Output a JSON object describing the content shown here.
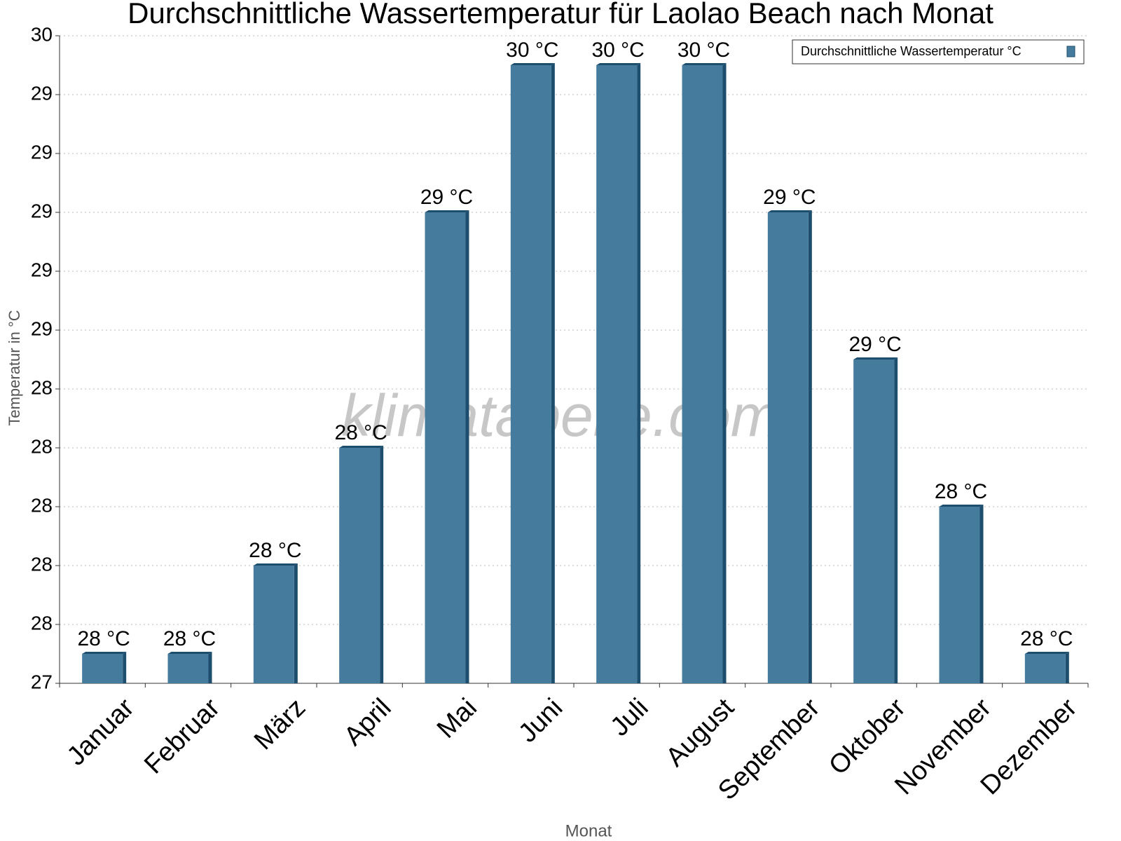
{
  "chart_data": {
    "type": "bar",
    "title": "Durchschnittliche Wassertemperatur für Laolao Beach nach Monat",
    "watermark": "klimatabelle.com",
    "x_label": "Monat",
    "y_label": "Temperatur in °C",
    "categories": [
      "Januar",
      "Februar",
      "März",
      "April",
      "Mai",
      "Juni",
      "Juli",
      "August",
      "September",
      "Oktober",
      "November",
      "Dezember"
    ],
    "series": [
      {
        "name": "Durchschnittliche Wassertemperatur °C",
        "color": "#457b9d",
        "values": [
          27.5,
          27.5,
          27.8,
          28.2,
          29.0,
          29.5,
          29.5,
          29.5,
          29.0,
          28.5,
          28.0,
          27.5
        ],
        "value_labels": [
          "28 °C",
          "28 °C",
          "28 °C",
          "28 °C",
          "29 °C",
          "30 °C",
          "30 °C",
          "30 °C",
          "29 °C",
          "29 °C",
          "28 °C",
          "28 °C"
        ]
      }
    ],
    "ylim": [
      27.4,
      29.6
    ],
    "yticks": [
      {
        "value": 27.4,
        "label": "27"
      },
      {
        "value": 27.6,
        "label": "28"
      },
      {
        "value": 27.8,
        "label": "28"
      },
      {
        "value": 28.0,
        "label": "28"
      },
      {
        "value": 28.2,
        "label": "28"
      },
      {
        "value": 28.4,
        "label": "28"
      },
      {
        "value": 28.6,
        "label": "29"
      },
      {
        "value": 28.8,
        "label": "29"
      },
      {
        "value": 29.0,
        "label": "29"
      },
      {
        "value": 29.2,
        "label": "29"
      },
      {
        "value": 29.4,
        "label": "29"
      },
      {
        "value": 29.6,
        "label": "30"
      }
    ],
    "grid": true,
    "legend": "top-right"
  }
}
